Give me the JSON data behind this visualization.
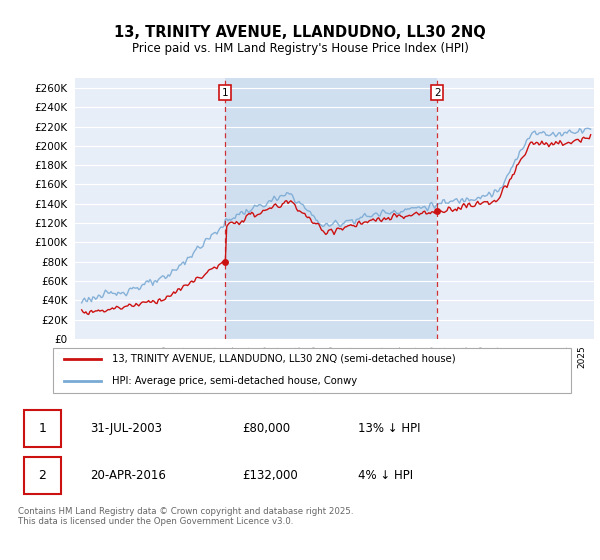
{
  "title": "13, TRINITY AVENUE, LLANDUDNO, LL30 2NQ",
  "subtitle": "Price paid vs. HM Land Registry's House Price Index (HPI)",
  "ylim": [
    0,
    270000
  ],
  "yticks": [
    0,
    20000,
    40000,
    60000,
    80000,
    100000,
    120000,
    140000,
    160000,
    180000,
    200000,
    220000,
    240000,
    260000
  ],
  "hpi_color": "#7aaad4",
  "price_color": "#cc1111",
  "marker1_date_x": 2003.58,
  "marker1_price": 80000,
  "marker2_date_x": 2016.3,
  "marker2_price": 132000,
  "vline_color": "#cc1111",
  "marker_box_color": "#cc1111",
  "bg_color": "#e8eef8",
  "shade_color": "#d0dff0",
  "legend_label_red": "13, TRINITY AVENUE, LLANDUDNO, LL30 2NQ (semi-detached house)",
  "legend_label_blue": "HPI: Average price, semi-detached house, Conwy",
  "footer": "Contains HM Land Registry data © Crown copyright and database right 2025.\nThis data is licensed under the Open Government Licence v3.0.",
  "table_row1": [
    "1",
    "31-JUL-2003",
    "£80,000",
    "13% ↓ HPI"
  ],
  "table_row2": [
    "2",
    "20-APR-2016",
    "£132,000",
    "4% ↓ HPI"
  ],
  "xlim_left": 1994.6,
  "xlim_right": 2025.7
}
